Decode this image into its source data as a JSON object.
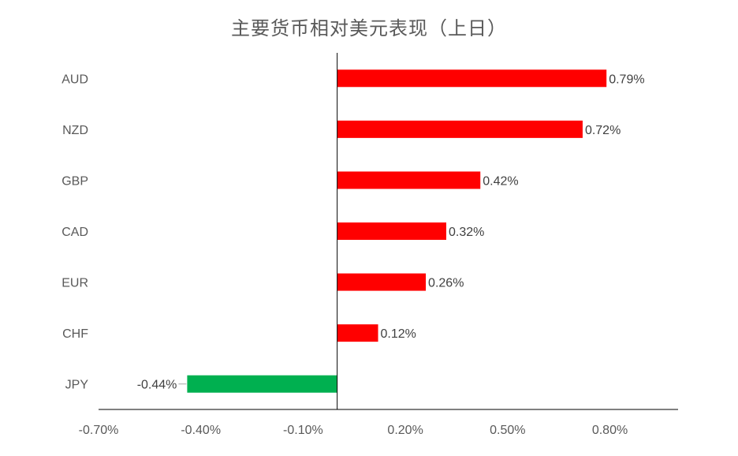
{
  "chart_data": {
    "type": "bar",
    "orientation": "horizontal",
    "title": "主要货币相对美元表现（上日）",
    "categories": [
      "AUD",
      "NZD",
      "GBP",
      "CAD",
      "EUR",
      "CHF",
      "JPY"
    ],
    "values": [
      0.79,
      0.72,
      0.42,
      0.32,
      0.26,
      0.12,
      -0.44
    ],
    "value_labels": [
      "0.79%",
      "0.72%",
      "0.42%",
      "0.32%",
      "0.26%",
      "0.12%",
      "-0.44%"
    ],
    "x_ticks": [
      -0.7,
      -0.4,
      -0.1,
      0.2,
      0.5,
      0.8
    ],
    "x_tick_labels": [
      "-0.70%",
      "-0.40%",
      "-0.10%",
      "0.20%",
      "0.50%",
      "0.80%"
    ],
    "xlim": [
      -0.7,
      1.0
    ],
    "colors": {
      "positive": "#ff0000",
      "negative": "#00b050"
    },
    "grid": false,
    "legend": "none"
  }
}
